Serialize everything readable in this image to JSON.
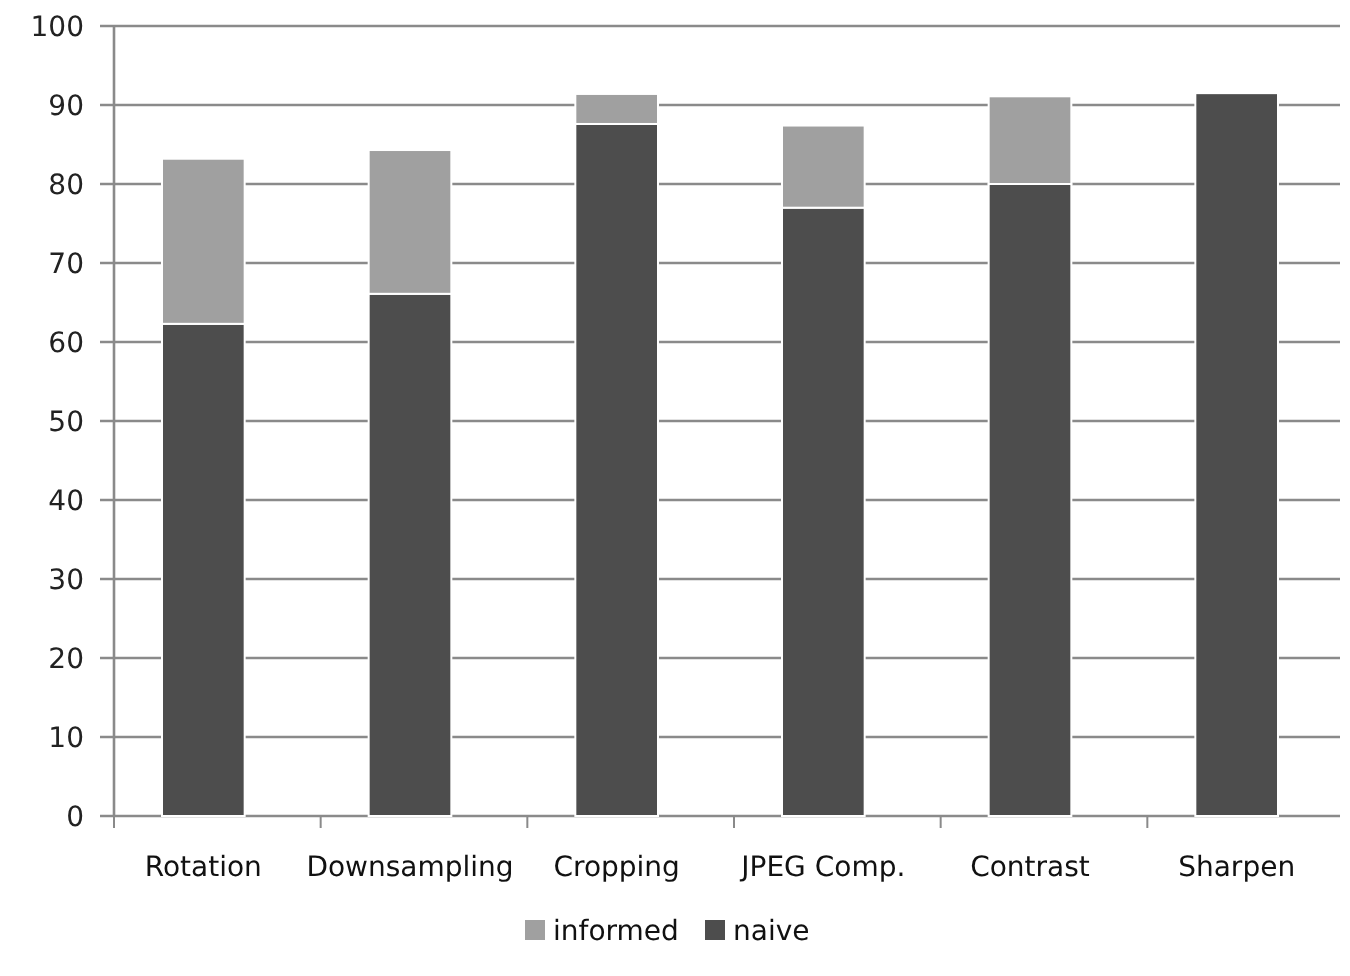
{
  "chart_data": {
    "type": "bar",
    "stacked": true,
    "categories": [
      "Rotation",
      "Downsampling",
      "Cropping",
      "JPEG Comp.",
      "Contrast",
      "Sharpen"
    ],
    "series": [
      {
        "name": "naive",
        "color": "#4d4d4d",
        "values": [
          62.3,
          66.1,
          87.6,
          77.0,
          80.0,
          91.5
        ]
      },
      {
        "name": "informed",
        "color": "#a0a0a0",
        "values": [
          20.9,
          18.2,
          3.8,
          10.4,
          11.1,
          0
        ]
      }
    ],
    "ylim": [
      0,
      100
    ],
    "yticks": [
      0,
      10,
      20,
      30,
      40,
      50,
      60,
      70,
      80,
      90,
      100
    ],
    "grid": "y",
    "legend": "bottom"
  }
}
